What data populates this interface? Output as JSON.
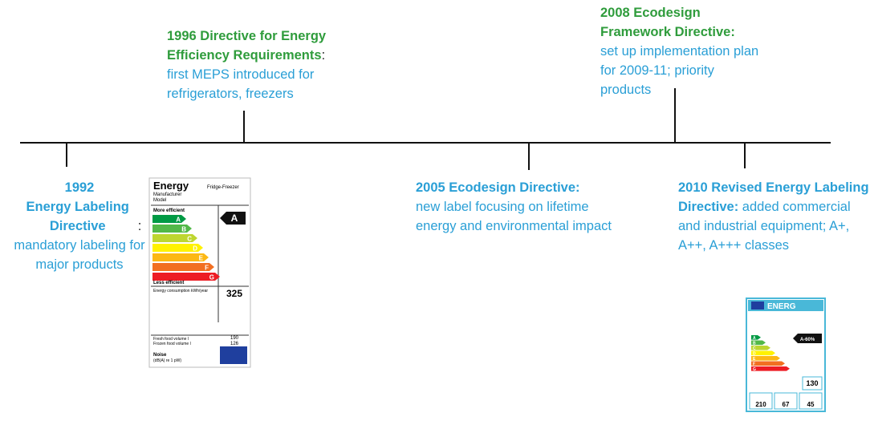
{
  "events": [
    {
      "year": "1992",
      "title": "Energy Labeling Directive",
      "punct": ":",
      "text": "mandatory labeling for major products"
    },
    {
      "title": "1996 Directive for Energy Efficiency Requirements",
      "punct": ":",
      "text": "first MEPS introduced for refrigerators, freezers"
    },
    {
      "title": "2005 Ecodesign Directive:",
      "text": "new label focusing on lifetime energy and environmental impact"
    },
    {
      "title": "2008 Ecodesign Framework Directive:",
      "text": "set up implementation plan for 2009-11; priority products"
    },
    {
      "title": "2010 Revised Energy Labeling Directive:",
      "text": "added commercial and industrial equipment; A+, A++, A+++ classes"
    }
  ],
  "old_label": {
    "title": "Energy",
    "manufacturer": "Manufacturer",
    "model": "Model",
    "type": "Fridge-Freezer",
    "more": "More efficient",
    "less": "Less efficient",
    "classes": [
      "A",
      "B",
      "C",
      "D",
      "E",
      "F",
      "G"
    ],
    "rating": "A",
    "consumption_label": "Energy consumption kWh/year",
    "consumption": "325",
    "fresh_label": "Fresh food volume l",
    "fresh": "190",
    "frozen_label": "Frozen food volume l",
    "frozen": "126",
    "noise_label": "Noise",
    "noise_unit": "(dB(A) re 1 pW)"
  },
  "new_label": {
    "brand": "ENERG",
    "rating": "A-60%",
    "classes": [
      "A",
      "B",
      "C",
      "D",
      "E",
      "F",
      "G"
    ],
    "consumption": "130",
    "fresh": "210",
    "frozen": "67",
    "noise": "45"
  }
}
